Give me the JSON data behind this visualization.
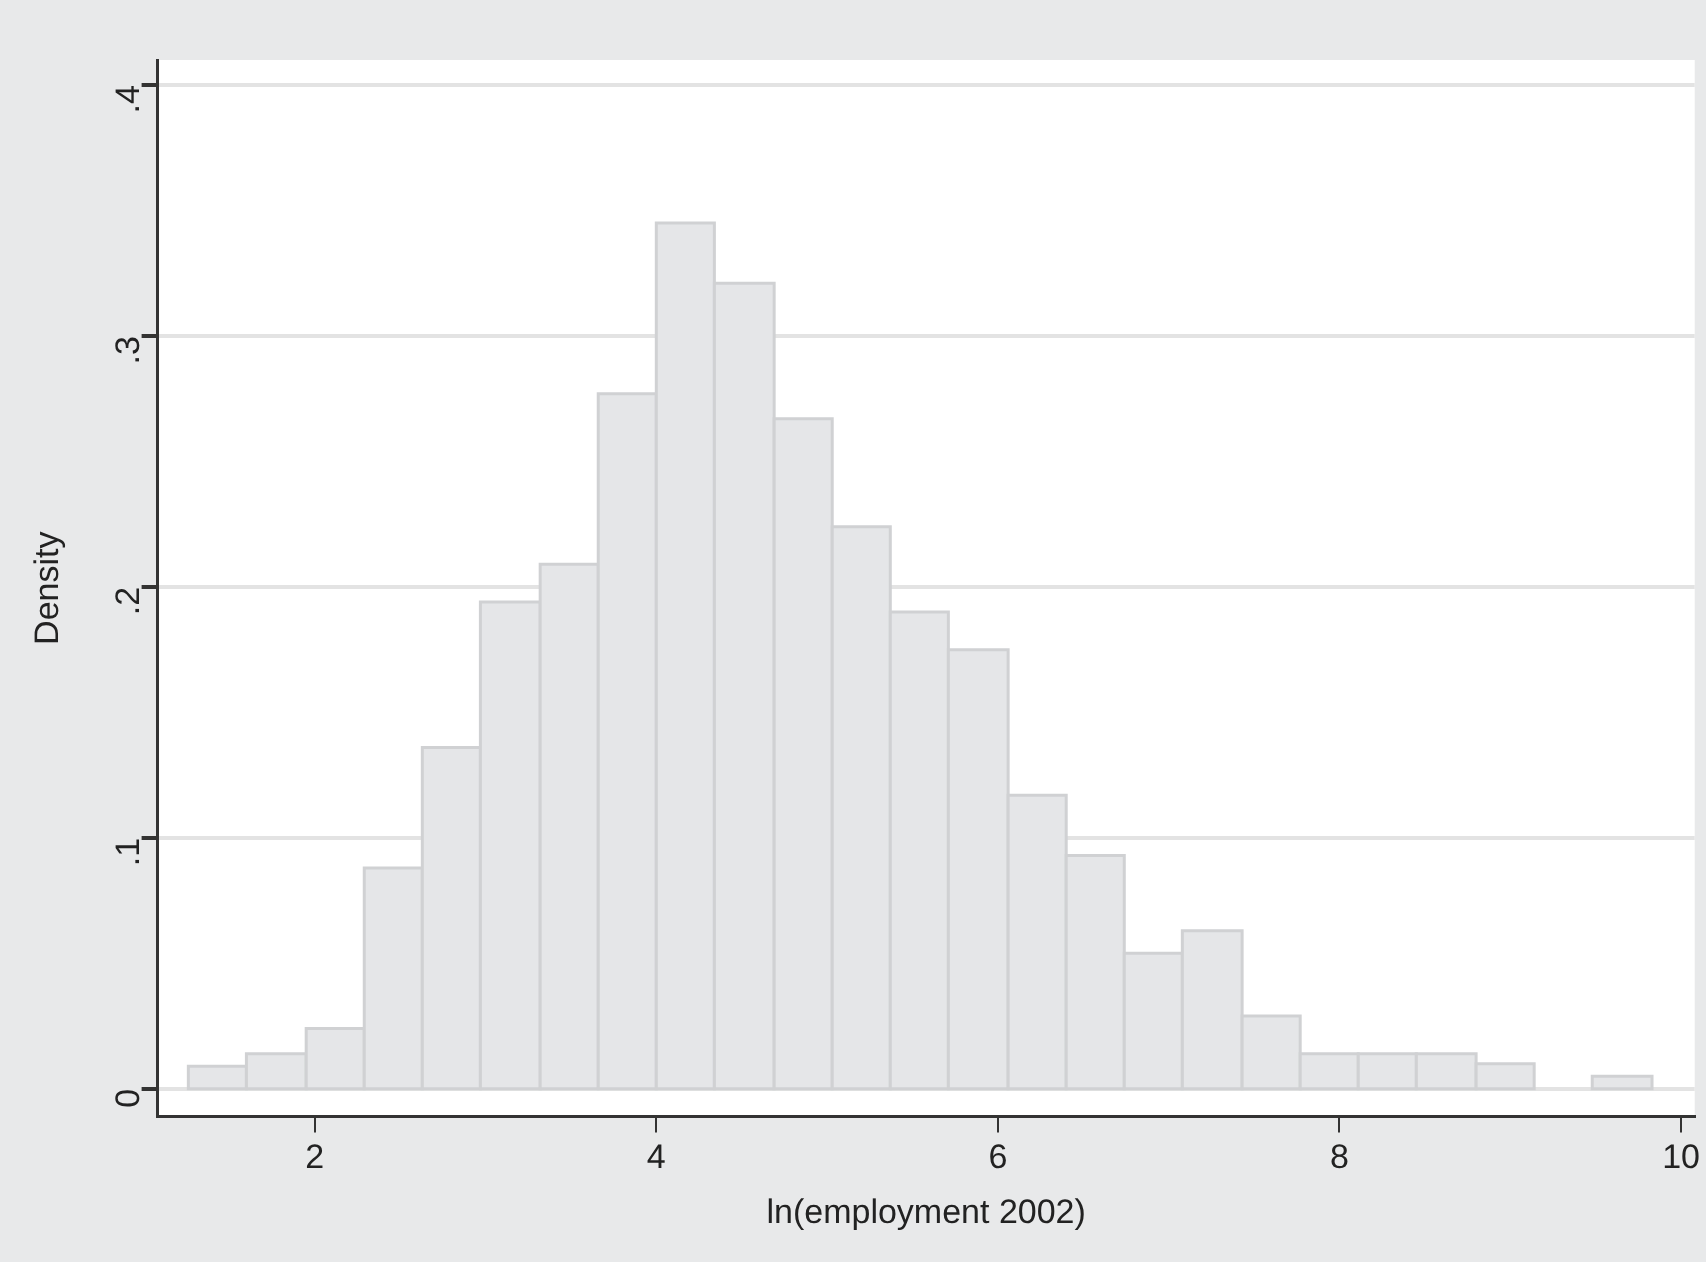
{
  "chart_data": {
    "type": "histogram",
    "xlabel": "ln(employment 2002)",
    "ylabel": "Density",
    "bins": [
      1.26,
      1.6,
      1.95,
      2.29,
      2.63,
      2.97,
      3.32,
      3.66,
      4.0,
      4.34,
      4.69,
      5.03,
      5.37,
      5.71,
      6.06,
      6.4,
      6.74,
      7.08,
      7.43,
      7.77,
      8.11,
      8.45,
      8.8,
      9.14,
      9.48,
      9.83
    ],
    "values": [
      0.009,
      0.014,
      0.024,
      0.088,
      0.136,
      0.194,
      0.209,
      0.277,
      0.345,
      0.321,
      0.267,
      0.224,
      0.19,
      0.175,
      0.117,
      0.093,
      0.054,
      0.063,
      0.029,
      0.014,
      0.014,
      0.014,
      0.01,
      0,
      0.005
    ],
    "color": "#e5e6e8",
    "xlim": [
      1.08,
      10.08
    ],
    "xticks": [
      2,
      4,
      6,
      8,
      10
    ],
    "ylim": [
      -0.011,
      0.41
    ],
    "yticks": [
      {
        "value": 0,
        "label": "0"
      },
      {
        "value": 0.1,
        "label": ".1"
      },
      {
        "value": 0.2,
        "label": ".2"
      },
      {
        "value": 0.3,
        "label": ".3"
      },
      {
        "value": 0.4,
        "label": ".4"
      }
    ],
    "grid": "y"
  }
}
